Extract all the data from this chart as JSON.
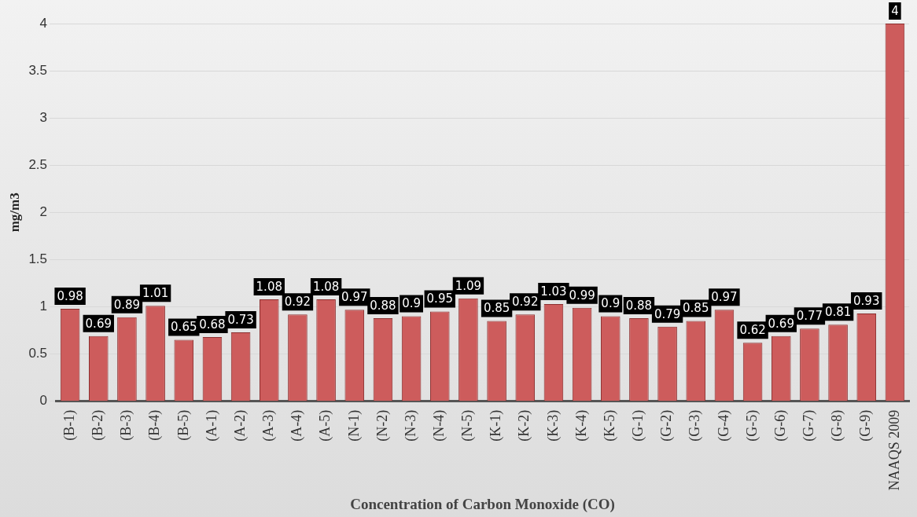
{
  "chart_data": {
    "type": "bar",
    "xlabel": "Concentration of Carbon Monoxide (CO)",
    "ylabel": "mg/m3",
    "categories": [
      "(B-1)",
      "(B-2)",
      "(B-3)",
      "(B-4)",
      "(B-5)",
      "(A-1)",
      "(A-2)",
      "(A-3)",
      "(A-4)",
      "(A-5)",
      "(N-1)",
      "(N-2)",
      "(N-3)",
      "(N-4)",
      "(N-5)",
      "(K-1)",
      "(K-2)",
      "(K-3)",
      "(K-4)",
      "(K-5)",
      "(G-1)",
      "(G-2)",
      "(G-3)",
      "(G-4)",
      "(G-5)",
      "(G-6)",
      "(G-7)",
      "(G-8)",
      "(G-9)",
      "NAAQS 2009"
    ],
    "values": [
      0.98,
      0.69,
      0.89,
      1.01,
      0.65,
      0.68,
      0.73,
      1.08,
      0.92,
      1.08,
      0.97,
      0.88,
      0.9,
      0.95,
      1.09,
      0.85,
      0.92,
      1.03,
      0.99,
      0.9,
      0.88,
      0.79,
      0.85,
      0.97,
      0.62,
      0.69,
      0.77,
      0.81,
      0.93,
      4
    ],
    "color": "#cd5c5c",
    "ylim": [
      0,
      4
    ],
    "yticks": [
      0,
      0.5,
      1,
      1.5,
      2,
      2.5,
      3,
      3.5,
      4
    ],
    "grid": "y",
    "data_labels": true
  }
}
